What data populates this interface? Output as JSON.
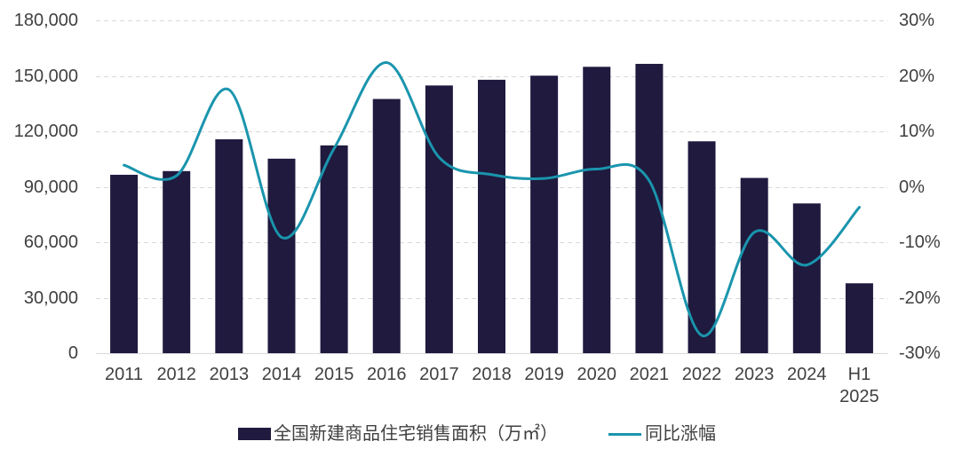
{
  "chart_data": {
    "type": "bar",
    "categories": [
      "2011",
      "2012",
      "2013",
      "2014",
      "2015",
      "2016",
      "2017",
      "2018",
      "2019",
      "2020",
      "2021",
      "2022",
      "2023",
      "2024",
      "H1 2025"
    ],
    "series": [
      {
        "name": "全国新建商品住宅销售面积（万㎡）",
        "type": "bar",
        "axis": "left",
        "values": [
          96500,
          98500,
          115700,
          105200,
          112400,
          137500,
          144800,
          147900,
          150100,
          154900,
          156500,
          114600,
          94800,
          81000,
          37800
        ]
      },
      {
        "name": "同比涨幅",
        "type": "line",
        "axis": "right",
        "smooth": true,
        "values": [
          3.9,
          2.0,
          17.5,
          -9.1,
          6.9,
          22.4,
          5.3,
          2.2,
          1.5,
          3.2,
          1.1,
          -26.8,
          -8.2,
          -14.1,
          -3.7
        ]
      }
    ],
    "y_left": {
      "min": 0,
      "max": 180000,
      "ticks": [
        0,
        30000,
        60000,
        90000,
        120000,
        150000,
        180000
      ],
      "tick_labels": [
        "0",
        "30,000",
        "60,000",
        "90,000",
        "120,000",
        "150,000",
        "180,000"
      ]
    },
    "y_right": {
      "min": -30,
      "max": 30,
      "ticks": [
        -30,
        -20,
        -10,
        0,
        10,
        20,
        30
      ],
      "tick_labels": [
        "-30%",
        "-20%",
        "-10%",
        "0%",
        "10%",
        "20%",
        "30%"
      ]
    },
    "grid": true,
    "legend": "bottom",
    "colors": {
      "bar": "#1f1a3e",
      "line": "#1a95ad",
      "grid": "#d9d9d9",
      "text": "#404040",
      "background": "#ffffff"
    }
  }
}
